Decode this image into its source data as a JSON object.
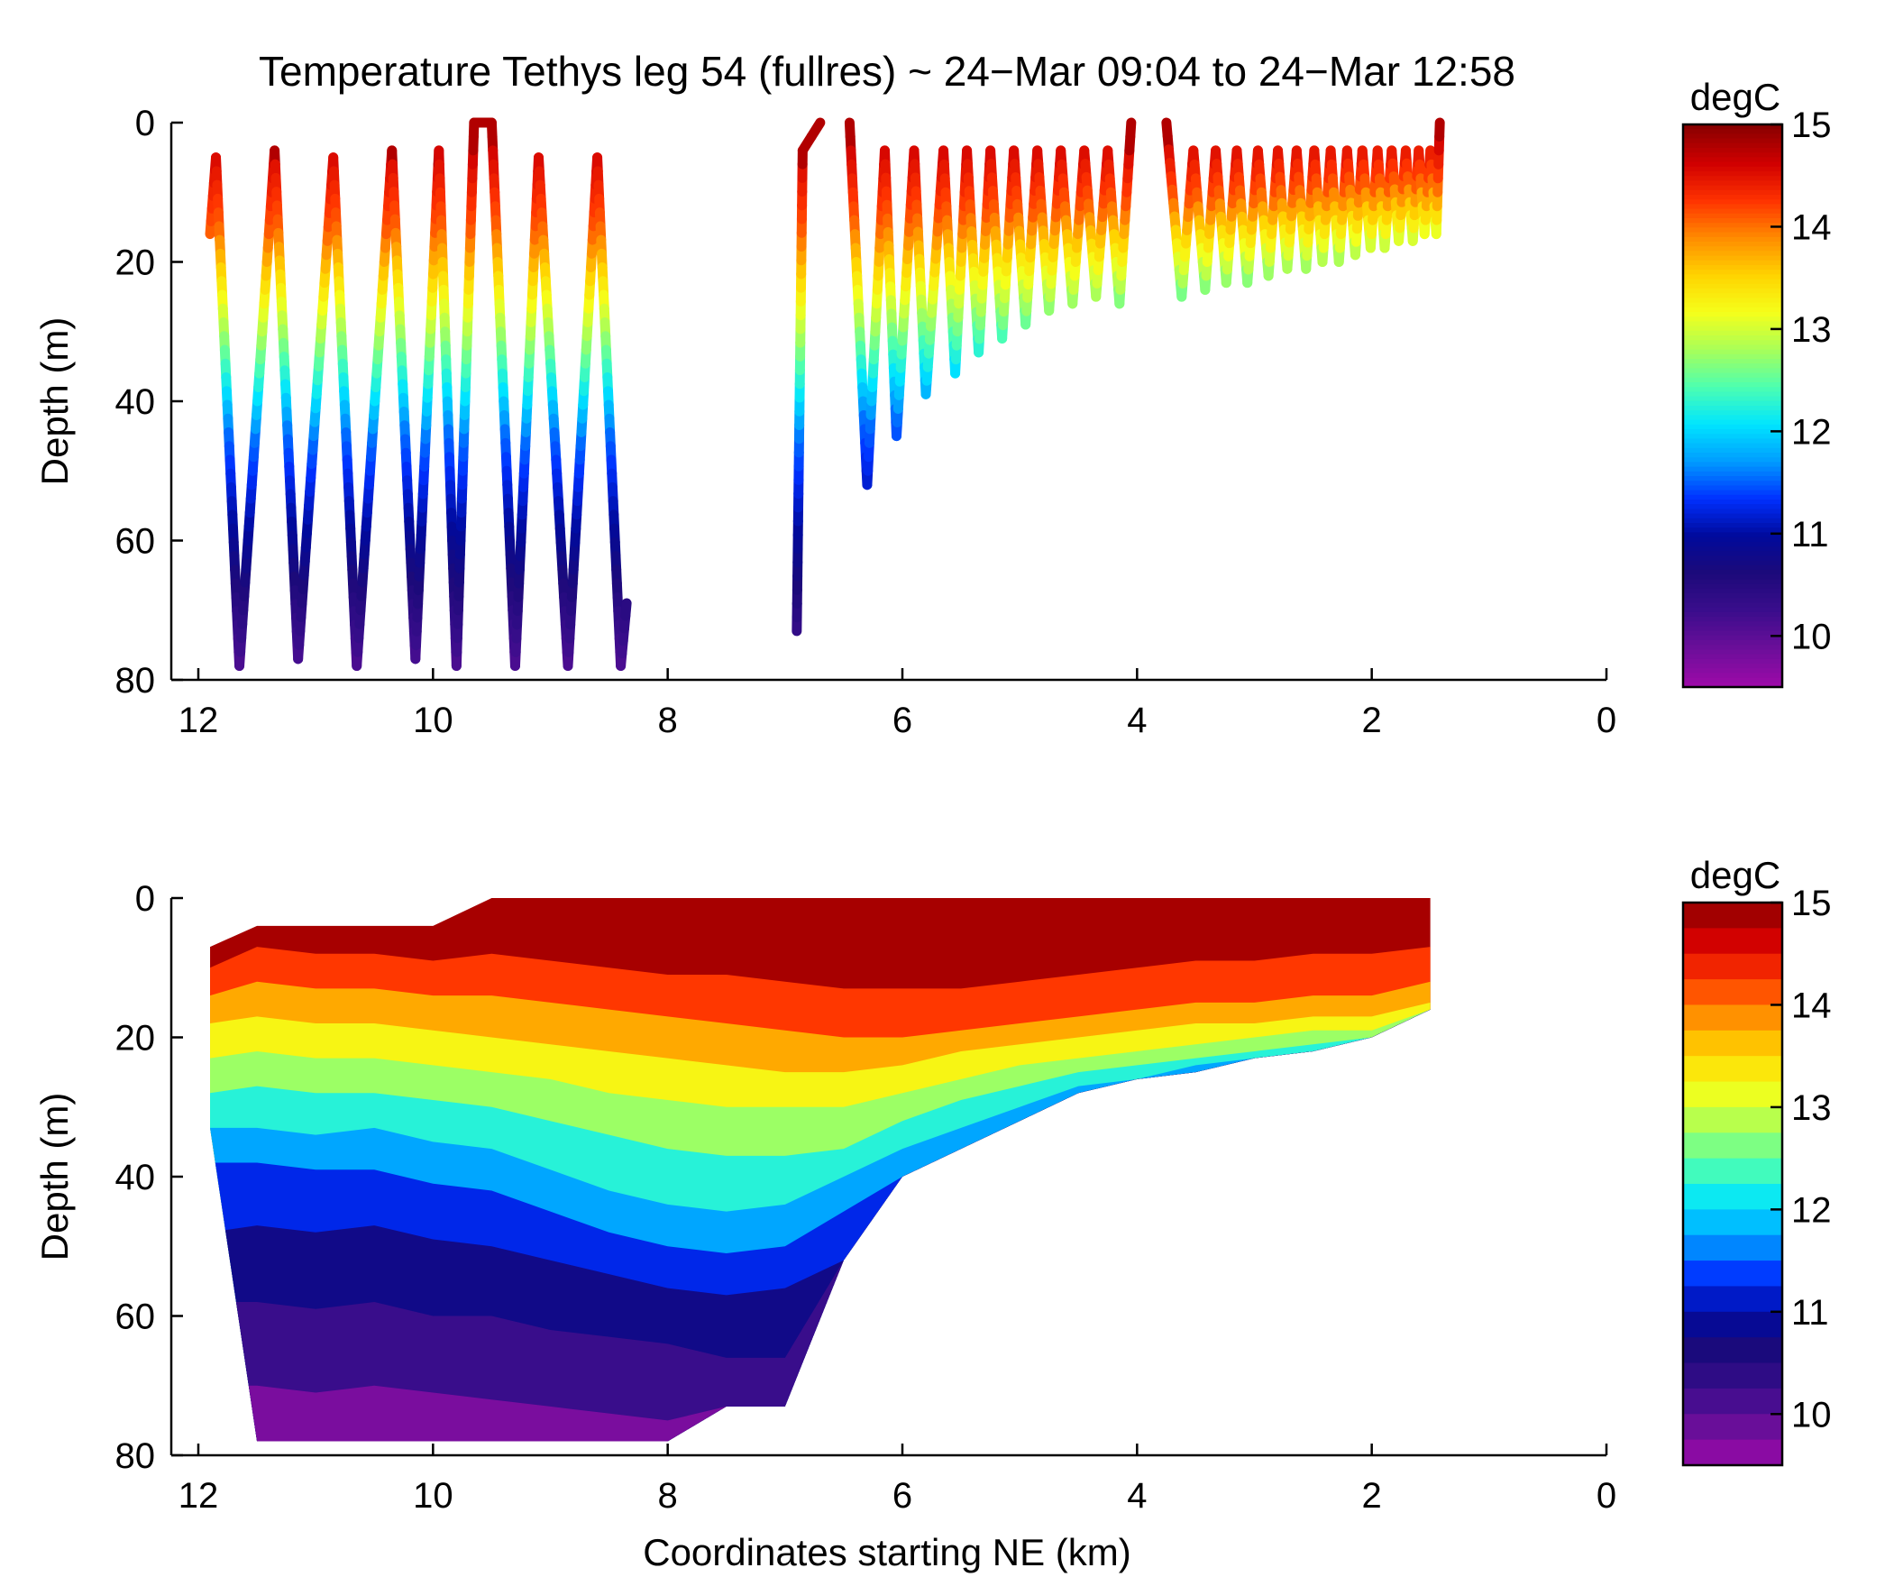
{
  "title": "Temperature Tethys leg 54 (fullres) ~ 24−Mar 09:04 to 24−Mar 12:58",
  "colormap": [
    "#8a0000",
    "#d10000",
    "#ff3300",
    "#ff8c00",
    "#ffd400",
    "#f5ff1a",
    "#a8ff59",
    "#4dffb0",
    "#00e5ff",
    "#009cff",
    "#0030ff",
    "#000a9c",
    "#1c0a7a",
    "#3a0d8c",
    "#6a0e99",
    "#9b0aa8"
  ],
  "chart_data": [
    {
      "type": "scatter",
      "name": "sample-track",
      "xlabel": "",
      "ylabel": "Depth (m)",
      "xlim": [
        12,
        0
      ],
      "ylim": [
        80,
        0
      ],
      "x_ticks": [
        "12",
        "10",
        "8",
        "6",
        "4",
        "2",
        "0"
      ],
      "y_ticks": [
        "0",
        "20",
        "40",
        "60",
        "80"
      ],
      "colorbar": {
        "label": "degC",
        "range": [
          9.5,
          15
        ],
        "ticks": [
          "15",
          "14",
          "13",
          "12",
          "11",
          "10"
        ],
        "continuous": true
      },
      "track": [
        [
          11.9,
          16
        ],
        [
          11.85,
          5
        ],
        [
          11.65,
          78
        ],
        [
          11.35,
          4
        ],
        [
          11.15,
          77
        ],
        [
          10.85,
          5
        ],
        [
          10.65,
          78
        ],
        [
          10.35,
          4
        ],
        [
          10.15,
          77
        ],
        [
          9.95,
          4
        ],
        [
          9.8,
          78
        ],
        [
          9.65,
          0
        ],
        [
          9.5,
          0
        ],
        [
          9.3,
          78
        ],
        [
          9.1,
          5
        ],
        [
          8.85,
          78
        ],
        [
          8.6,
          5
        ],
        [
          8.4,
          78
        ],
        [
          8.35,
          69
        ],
        [
          null,
          null
        ],
        [
          6.9,
          73
        ],
        [
          6.85,
          4
        ],
        [
          6.7,
          0
        ],
        [
          null,
          null
        ],
        [
          6.45,
          0
        ],
        [
          6.3,
          52
        ],
        [
          6.15,
          4
        ],
        [
          6.05,
          45
        ],
        [
          5.9,
          4
        ],
        [
          5.8,
          39
        ],
        [
          5.65,
          4
        ],
        [
          5.55,
          36
        ],
        [
          5.45,
          4
        ],
        [
          5.35,
          33
        ],
        [
          5.25,
          4
        ],
        [
          5.15,
          31
        ],
        [
          5.05,
          4
        ],
        [
          4.95,
          29
        ],
        [
          4.85,
          4
        ],
        [
          4.75,
          27
        ],
        [
          4.65,
          4
        ],
        [
          4.55,
          26
        ],
        [
          4.45,
          4
        ],
        [
          4.35,
          25
        ],
        [
          4.25,
          4
        ],
        [
          4.15,
          26
        ],
        [
          4.05,
          0
        ],
        [
          null,
          null
        ],
        [
          3.75,
          0
        ],
        [
          3.62,
          25
        ],
        [
          3.52,
          4
        ],
        [
          3.42,
          24
        ],
        [
          3.33,
          4
        ],
        [
          3.24,
          23
        ],
        [
          3.15,
          4
        ],
        [
          3.06,
          23
        ],
        [
          2.97,
          4
        ],
        [
          2.88,
          22
        ],
        [
          2.8,
          4
        ],
        [
          2.72,
          21
        ],
        [
          2.64,
          4
        ],
        [
          2.56,
          21
        ],
        [
          2.49,
          4
        ],
        [
          2.42,
          20
        ],
        [
          2.35,
          4
        ],
        [
          2.28,
          20
        ],
        [
          2.21,
          4
        ],
        [
          2.14,
          19
        ],
        [
          2.08,
          4
        ],
        [
          2.01,
          18
        ],
        [
          1.95,
          4
        ],
        [
          1.89,
          18
        ],
        [
          1.83,
          4
        ],
        [
          1.77,
          17
        ],
        [
          1.71,
          4
        ],
        [
          1.65,
          17
        ],
        [
          1.6,
          4
        ],
        [
          1.55,
          16
        ],
        [
          1.5,
          4
        ],
        [
          1.45,
          16
        ],
        [
          1.42,
          0
        ]
      ]
    },
    {
      "type": "heatmap",
      "name": "contour-section",
      "xlabel": "Coordinates starting NE (km)",
      "ylabel": "Depth (m)",
      "xlim": [
        12,
        0
      ],
      "ylim": [
        80,
        0
      ],
      "x_ticks": [
        "12",
        "10",
        "8",
        "6",
        "4",
        "2",
        "0"
      ],
      "y_ticks": [
        "0",
        "20",
        "40",
        "60",
        "80"
      ],
      "colorbar": {
        "label": "degC",
        "range": [
          9.5,
          15
        ],
        "ticks": [
          "15",
          "14",
          "13",
          "12",
          "11",
          "10"
        ],
        "continuous": false
      },
      "profile": {
        "x": [
          11.9,
          11.5,
          11.0,
          10.5,
          10.0,
          9.5,
          9.0,
          8.5,
          8.0,
          7.5,
          7.0,
          6.5,
          6.0,
          5.5,
          5.0,
          4.5,
          4.0,
          3.5,
          3.0,
          2.5,
          2.0,
          1.5
        ],
        "top": [
          7,
          4,
          4,
          4,
          4,
          0,
          0,
          0,
          0,
          0,
          0,
          0,
          0,
          0,
          0,
          0,
          0,
          0,
          0,
          0,
          0,
          0
        ],
        "bottom": [
          33,
          78,
          78,
          78,
          78,
          78,
          78,
          78,
          78,
          73,
          73,
          52,
          40,
          36,
          32,
          28,
          26,
          25,
          23,
          22,
          20,
          16
        ],
        "isotherm_depths": {
          "14.5": [
            10,
            7,
            8,
            8,
            9,
            8,
            9,
            10,
            11,
            11,
            12,
            13,
            13,
            13,
            12,
            11,
            10,
            9,
            9,
            8,
            8,
            7
          ],
          "14": [
            14,
            12,
            13,
            13,
            14,
            14,
            15,
            16,
            17,
            18,
            19,
            20,
            20,
            19,
            18,
            17,
            16,
            15,
            15,
            14,
            14,
            12
          ],
          "13.5": [
            18,
            17,
            18,
            18,
            19,
            20,
            21,
            22,
            23,
            24,
            25,
            25,
            24,
            22,
            21,
            20,
            19,
            18,
            18,
            17,
            17,
            15
          ],
          "13": [
            23,
            22,
            23,
            23,
            24,
            25,
            26,
            28,
            29,
            30,
            30,
            30,
            28,
            26,
            24,
            23,
            22,
            21,
            20,
            19,
            19,
            16
          ],
          "12.5": [
            28,
            27,
            28,
            28,
            29,
            30,
            32,
            34,
            36,
            37,
            37,
            36,
            32,
            29,
            27,
            25,
            24,
            23,
            22,
            21,
            20,
            16
          ],
          "12": [
            33,
            33,
            34,
            33,
            35,
            36,
            39,
            42,
            44,
            45,
            44,
            40,
            36,
            33,
            30,
            27,
            26,
            24,
            23,
            22,
            20,
            16
          ],
          "11.5": [
            38,
            38,
            39,
            39,
            41,
            42,
            45,
            48,
            50,
            51,
            50,
            45,
            40,
            36,
            32,
            28,
            26,
            25,
            23,
            22,
            20,
            16
          ],
          "11": [
            48,
            47,
            48,
            47,
            49,
            50,
            52,
            54,
            56,
            57,
            56,
            52,
            40,
            36,
            32,
            28,
            26,
            25,
            23,
            22,
            20,
            16
          ],
          "10.5": [
            58,
            58,
            59,
            58,
            60,
            60,
            62,
            63,
            64,
            66,
            66,
            52,
            40,
            36,
            32,
            28,
            26,
            25,
            23,
            22,
            20,
            16
          ],
          "10": [
            70,
            70,
            71,
            70,
            71,
            72,
            73,
            74,
            75,
            73,
            73,
            52,
            40,
            36,
            32,
            28,
            26,
            25,
            23,
            22,
            20,
            16
          ]
        }
      }
    }
  ]
}
